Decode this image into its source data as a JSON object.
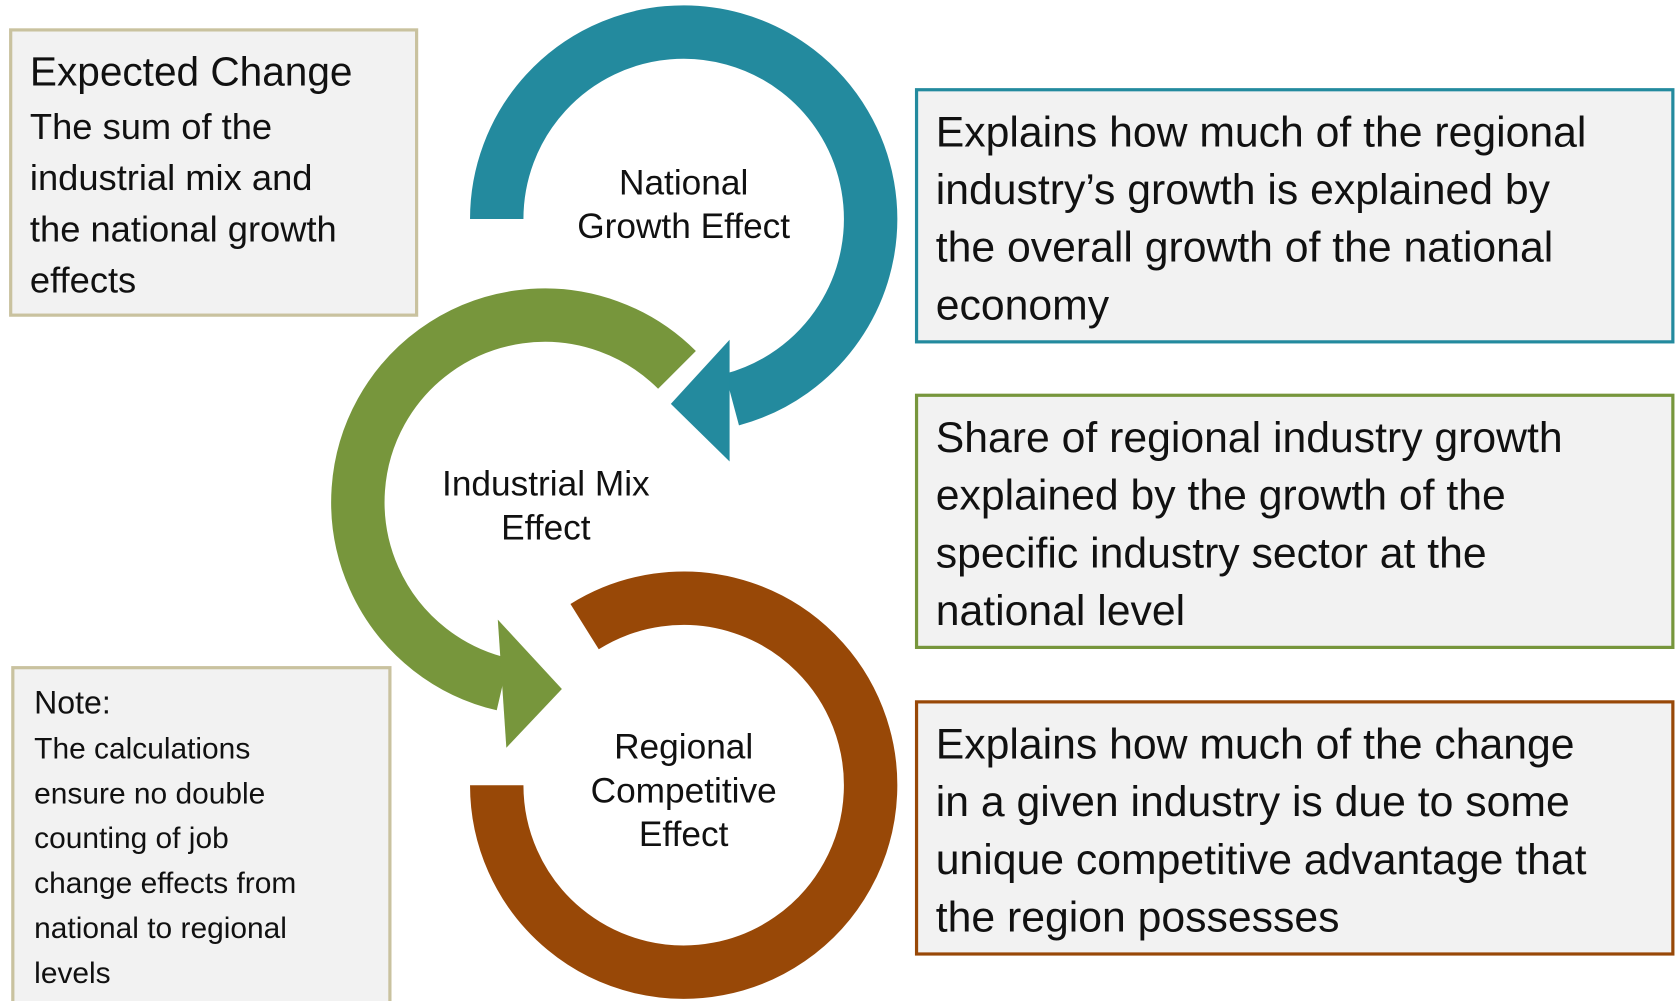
{
  "expected_change": {
    "title": "Expected Change",
    "lines": [
      "The sum of the",
      "industrial mix and",
      "the national growth",
      "effects"
    ]
  },
  "note": {
    "title": "Note:",
    "lines": [
      "The calculations",
      "ensure no double",
      "counting of job",
      "change effects from",
      "national to regional",
      "levels"
    ]
  },
  "nodes": [
    {
      "label": [
        "National",
        "Growth Effect"
      ],
      "color": "#238a9e",
      "description": [
        "Explains how much of the regional",
        "industry’s growth is explained by",
        "the overall growth of the national",
        "economy"
      ]
    },
    {
      "label": [
        "Industrial Mix",
        "Effect"
      ],
      "color": "#77963c",
      "description": [
        "Share of regional industry growth",
        "explained by the growth of the",
        "specific industry sector at the",
        "national level"
      ]
    },
    {
      "label": [
        "Regional",
        "Competitive",
        "Effect"
      ],
      "color": "#984807",
      "description": [
        "Explains how much of the change",
        "in a given industry is due to some",
        "unique competitive advantage that",
        "the region possesses"
      ]
    }
  ]
}
